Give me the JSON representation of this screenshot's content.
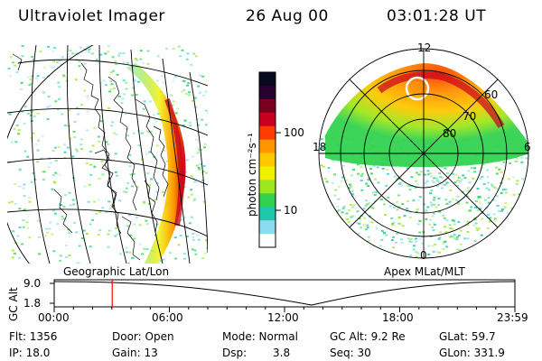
{
  "header": {
    "instrument": "Ultraviolet Imager",
    "date": "26 Aug 00",
    "time": "03:01:28 UT"
  },
  "panels": {
    "geo_label": "Geographic Lat/Lon",
    "apex_label": "Apex MLat/MLT"
  },
  "polar_plot": {
    "mlt_labels": [
      "12",
      "18",
      "6",
      "0"
    ],
    "mlat_labels": [
      "60",
      "70",
      "80"
    ]
  },
  "colorbar": {
    "unit_label": "photon cm⁻²s⁻¹",
    "ticks": [
      "100",
      "10"
    ],
    "colors": [
      "#0a0a1e",
      "#2a0030",
      "#7a0020",
      "#c8001e",
      "#ff3c00",
      "#ff9600",
      "#ffc800",
      "#f0f000",
      "#9ee61e",
      "#32d250",
      "#1ec8aa",
      "#8cdcf0",
      "#ffffff"
    ]
  },
  "altitude_plot": {
    "ylabel": "GC Alt",
    "yticks": [
      "9.0",
      "1.8"
    ],
    "xticks": [
      "00:00",
      "06:00",
      "12:00",
      "18:00",
      "23:59"
    ],
    "marker_time_hours": 3.02,
    "marker_color": "#ff0000"
  },
  "info": {
    "flt": "Flt: 1356",
    "ip": "IP: 18.0",
    "door": "Door: Open",
    "gain": "Gain: 13",
    "mode": "Mode: Normal",
    "dsp_label": "Dsp:",
    "dsp_value": "3.8",
    "gc_alt": "GC Alt: 9.2 Re",
    "seq": "Seq: 30",
    "glat": "GLat: 59.7",
    "glon": "GLon: 331.9"
  }
}
